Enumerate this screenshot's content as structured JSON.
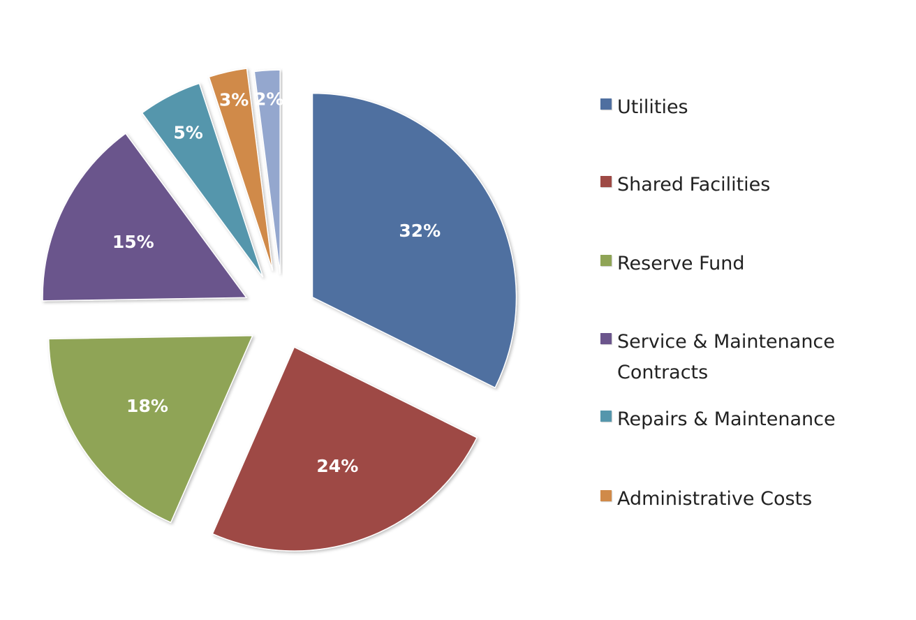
{
  "chart_data": {
    "type": "pie",
    "title": "",
    "exploded": true,
    "start": "12 o'clock, clockwise",
    "legend_position": "right",
    "slices": [
      {
        "name": "Utilities",
        "value": 32,
        "label": "32%",
        "color": "#4F6FA0"
      },
      {
        "name": "Shared Facilities",
        "value": 24,
        "label": "24%",
        "color": "#9E4A45"
      },
      {
        "name": "Reserve Fund",
        "value": 18,
        "label": "18%",
        "color": "#8FA456"
      },
      {
        "name": "Service & Maintenance Contracts",
        "value": 15,
        "label": "15%",
        "color": "#6B558C"
      },
      {
        "name": "Repairs & Maintenance",
        "value": 5,
        "label": "5%",
        "color": "#5596AC"
      },
      {
        "name": "Administrative Costs",
        "value": 3,
        "label": "3%",
        "color": "#D08A49"
      },
      {
        "name": "",
        "value": 2,
        "label": "2%",
        "color": "#94A7CE"
      }
    ],
    "legend": [
      {
        "text": "Utilities",
        "color": "#4F6FA0"
      },
      {
        "text": "Shared Facilities",
        "color": "#9E4A45"
      },
      {
        "text": "Reserve Fund",
        "color": "#8FA456"
      },
      {
        "text": "Service & Maintenance Contracts",
        "color": "#6B558C"
      },
      {
        "text": "Repairs & Maintenance",
        "color": "#5596AC"
      },
      {
        "text": "Administrative Costs",
        "color": "#D08A49"
      }
    ]
  }
}
